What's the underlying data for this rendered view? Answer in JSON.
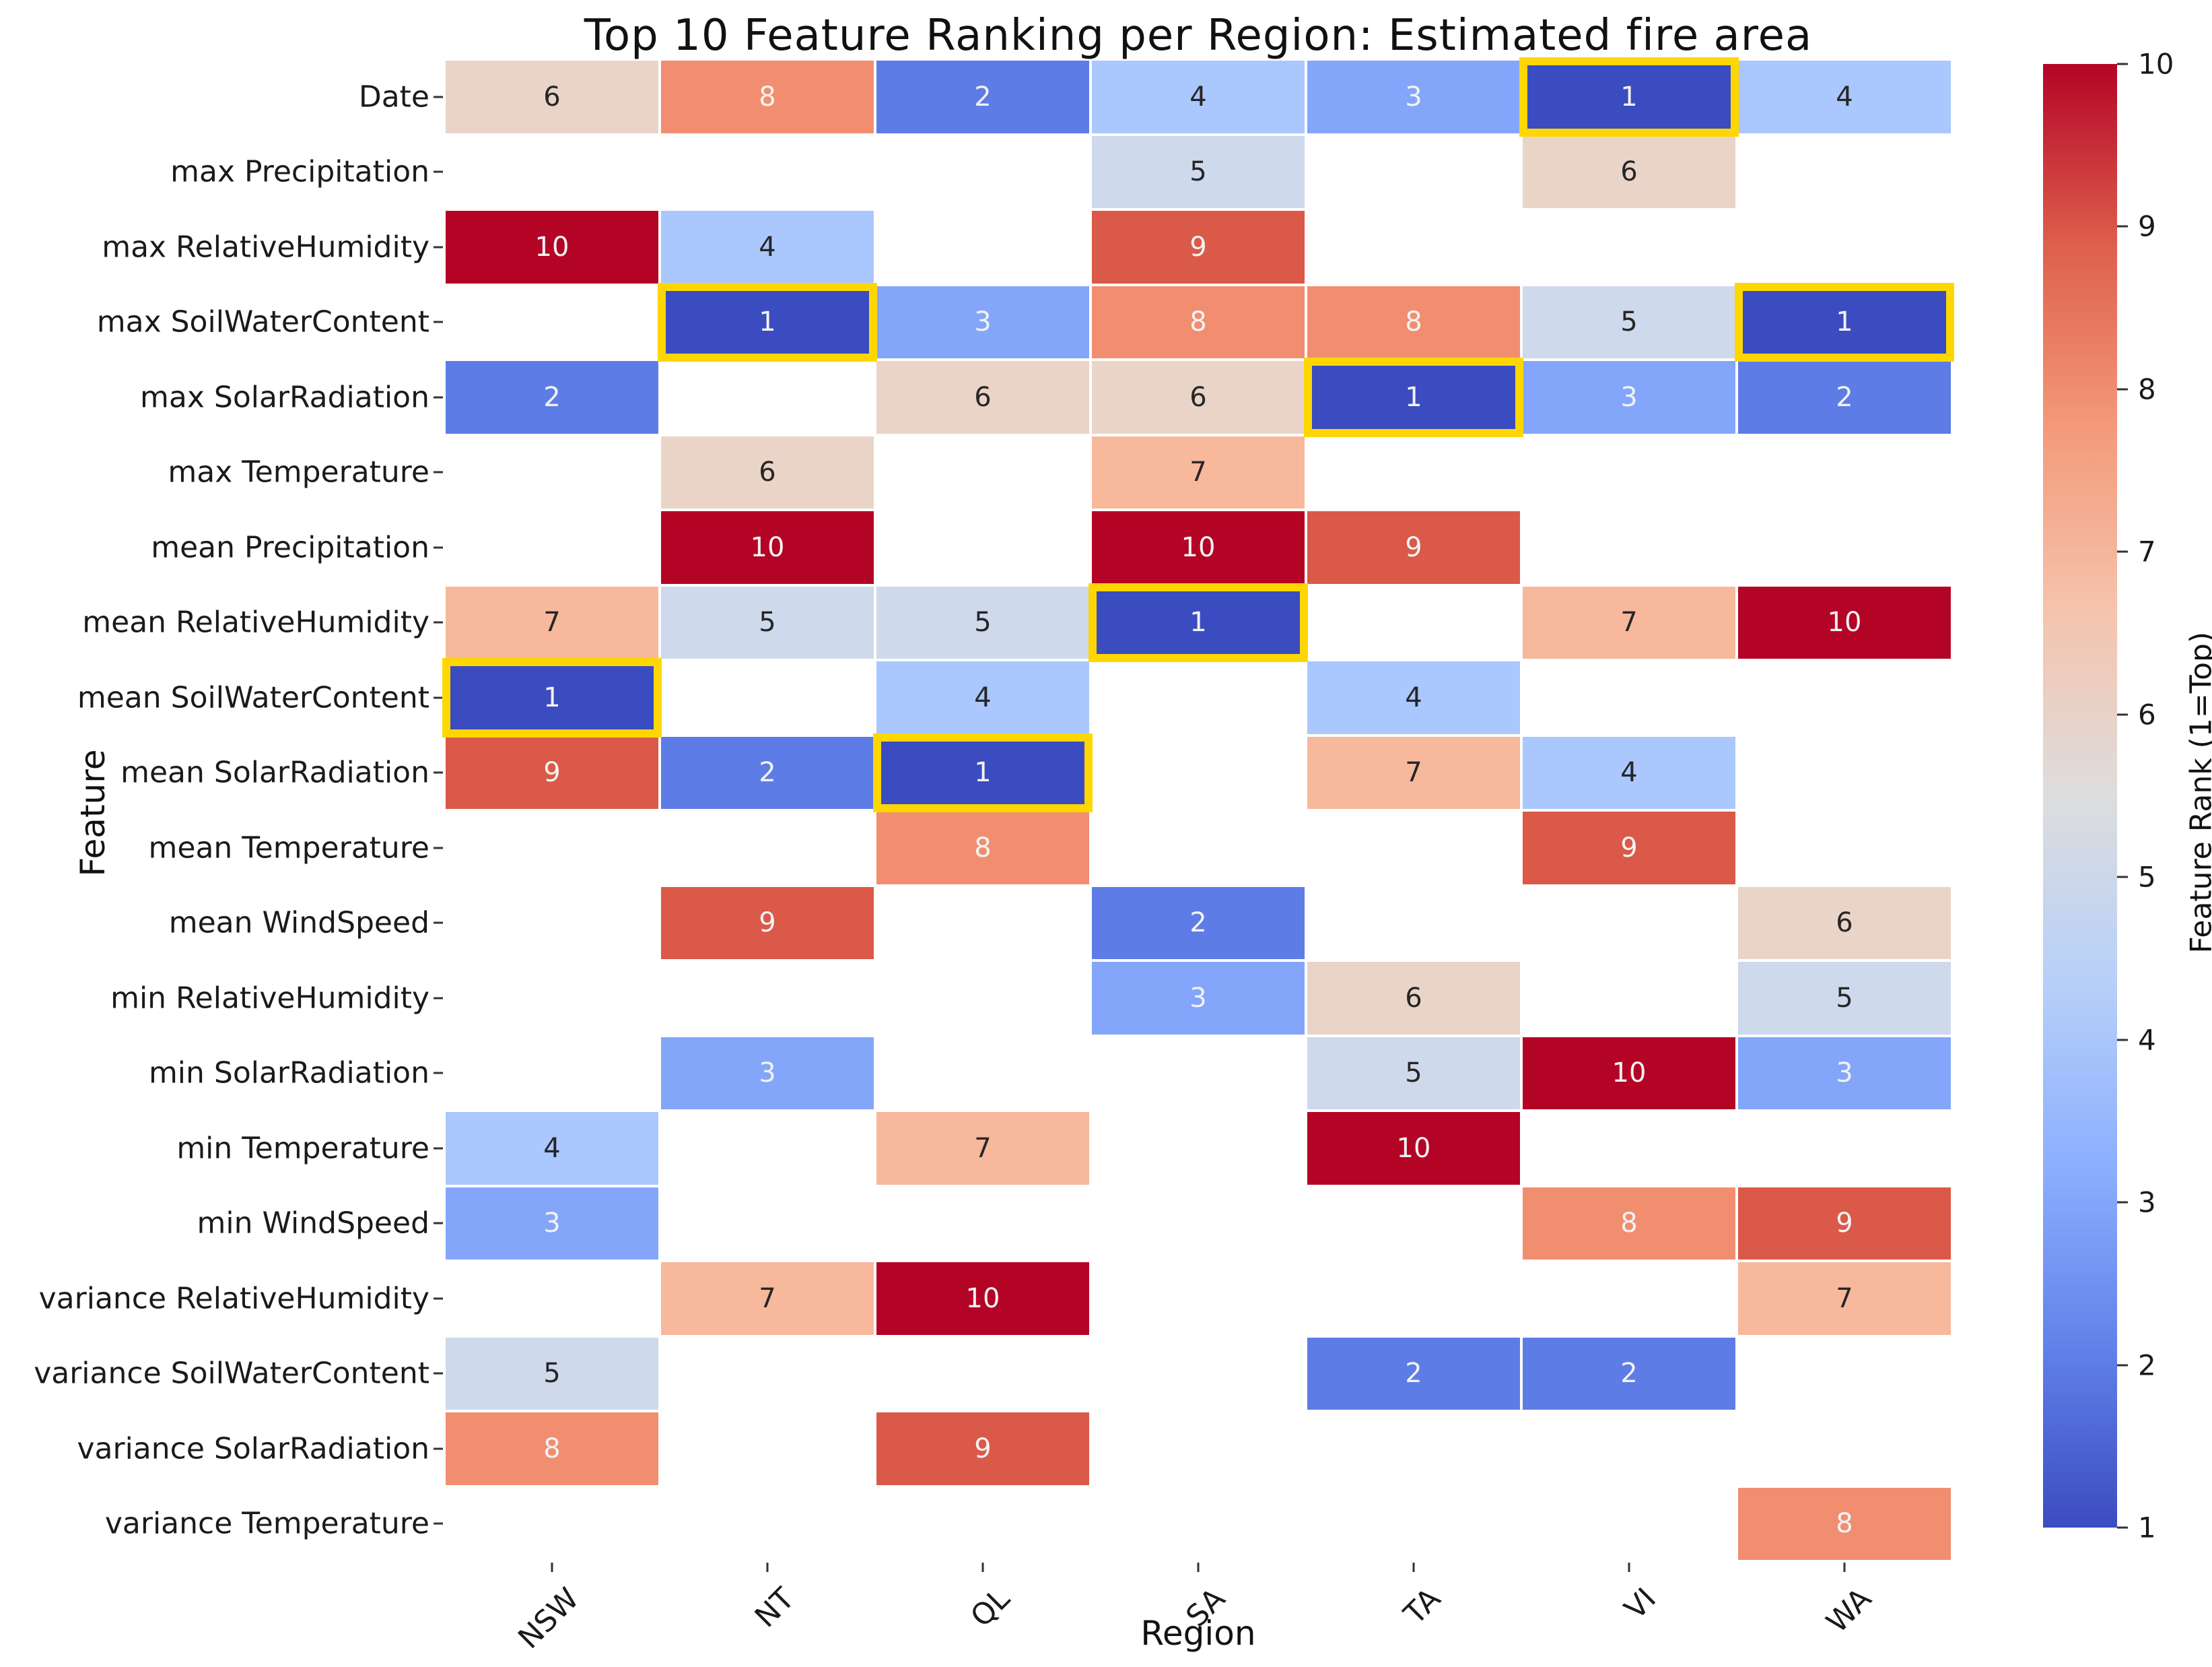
{
  "title": "Top 10 Feature Ranking per Region: Estimated fire area",
  "xlabel": "Region",
  "ylabel": "Feature",
  "style": {
    "light_text": "#f2f2f2",
    "dark_text": "#262626",
    "highlight_border": "#FFD700",
    "background": "#ffffff"
  },
  "colorbar": {
    "label": "Feature Rank (1=Top)",
    "ticks": [
      10,
      9,
      8,
      7,
      6,
      5,
      4,
      3,
      2,
      1
    ],
    "gradient_top_to_bottom": [
      "#b40426",
      "#de604d",
      "#f49a7b",
      "#f5c4ad",
      "#dddddd",
      "#b8d0f9",
      "#8db0fe",
      "#6282ea",
      "#3b4cc0"
    ]
  },
  "chart_data": {
    "type": "heatmap",
    "title": "Top 10 Feature Ranking per Region: Estimated fire area",
    "xlabel": "Region",
    "ylabel": "Feature",
    "colormap": "coolwarm",
    "value_range": [
      1,
      10
    ],
    "x_categories": [
      "NSW",
      "NT",
      "QL",
      "SA",
      "TA",
      "VI",
      "WA"
    ],
    "y_categories": [
      "Date",
      "max Precipitation",
      "max RelativeHumidity",
      "max SoilWaterContent",
      "max SolarRadiation",
      "max Temperature",
      "mean Precipitation",
      "mean RelativeHumidity",
      "mean SoilWaterContent",
      "mean SolarRadiation",
      "mean Temperature",
      "mean WindSpeed",
      "min RelativeHumidity",
      "min SolarRadiation",
      "min Temperature",
      "min WindSpeed",
      "variance RelativeHumidity",
      "variance SoilWaterContent",
      "variance SolarRadiation",
      "variance Temperature"
    ],
    "values": [
      [
        6,
        8,
        2,
        4,
        3,
        1,
        4
      ],
      [
        null,
        null,
        null,
        5,
        null,
        6,
        null
      ],
      [
        10,
        4,
        null,
        9,
        null,
        null,
        null
      ],
      [
        null,
        1,
        3,
        8,
        8,
        5,
        1
      ],
      [
        2,
        null,
        6,
        6,
        1,
        3,
        2
      ],
      [
        null,
        6,
        null,
        7,
        null,
        null,
        null
      ],
      [
        null,
        10,
        null,
        10,
        9,
        null,
        null
      ],
      [
        7,
        5,
        5,
        1,
        null,
        7,
        10
      ],
      [
        1,
        null,
        4,
        null,
        4,
        null,
        null
      ],
      [
        9,
        2,
        1,
        null,
        7,
        4,
        null
      ],
      [
        null,
        null,
        8,
        null,
        null,
        9,
        null
      ],
      [
        null,
        9,
        null,
        2,
        null,
        null,
        6
      ],
      [
        null,
        null,
        null,
        3,
        6,
        null,
        5
      ],
      [
        null,
        3,
        null,
        null,
        5,
        10,
        3
      ],
      [
        4,
        null,
        7,
        null,
        10,
        null,
        null
      ],
      [
        3,
        null,
        null,
        null,
        null,
        8,
        9
      ],
      [
        null,
        7,
        10,
        null,
        null,
        null,
        7
      ],
      [
        5,
        null,
        null,
        null,
        2,
        2,
        null
      ],
      [
        8,
        null,
        9,
        null,
        null,
        null,
        null
      ],
      [
        null,
        null,
        null,
        null,
        null,
        null,
        8
      ]
    ],
    "highlighted_rank1_cells": [
      [
        "Date",
        "VI"
      ],
      [
        "max SoilWaterContent",
        "NT"
      ],
      [
        "max SoilWaterContent",
        "WA"
      ],
      [
        "max SolarRadiation",
        "TA"
      ],
      [
        "mean RelativeHumidity",
        "SA"
      ],
      [
        "mean SoilWaterContent",
        "NSW"
      ],
      [
        "mean SolarRadiation",
        "QL"
      ]
    ],
    "rank_colors": {
      "1": "#3b4cc0",
      "2": "#5d7ce6",
      "3": "#83a6fb",
      "4": "#aac7fe",
      "5": "#ced9ec",
      "6": "#ead4c8",
      "7": "#f7b89c",
      "8": "#f18e70",
      "9": "#da5948",
      "10": "#b40426"
    },
    "light_text_ranks": [
      1,
      2,
      3,
      8,
      9,
      10
    ],
    "legend_position": "right-colorbar",
    "grid": false
  }
}
